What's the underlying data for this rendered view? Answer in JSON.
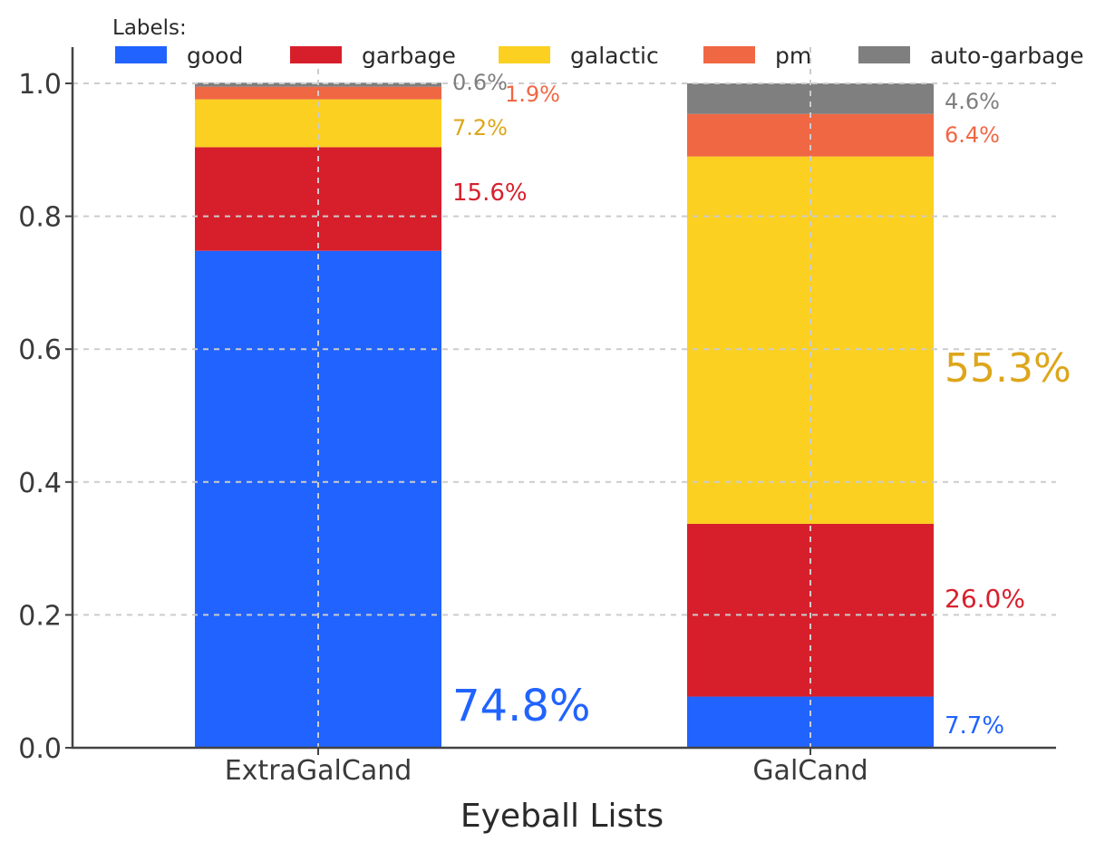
{
  "chart_data": {
    "type": "bar",
    "stacked": true,
    "title": "",
    "xlabel": "Eyeball Lists",
    "ylabel": "",
    "ylim": [
      0,
      1.0
    ],
    "yticks": [
      "0.0",
      "0.2",
      "0.4",
      "0.6",
      "0.8",
      "1.0"
    ],
    "grid": true,
    "legend": {
      "title": "Labels:",
      "placement": "top"
    },
    "categories": [
      "ExtraGalCand",
      "GalCand"
    ],
    "series": [
      {
        "name": "good",
        "color": "#2163ff",
        "label_color": "#2163ff",
        "values": [
          0.748,
          0.077
        ],
        "labels": [
          "74.8%",
          "7.7%"
        ]
      },
      {
        "name": "garbage",
        "color": "#d71f2c",
        "label_color": "#d71f2c",
        "values": [
          0.156,
          0.26
        ],
        "labels": [
          "15.6%",
          "26.0%"
        ]
      },
      {
        "name": "galactic",
        "color": "#fbd021",
        "label_color": "#dda61b",
        "values": [
          0.072,
          0.553
        ],
        "labels": [
          "7.2%",
          "55.3%"
        ]
      },
      {
        "name": "pm",
        "color": "#f06744",
        "label_color": "#f06744",
        "values": [
          0.019,
          0.064
        ],
        "labels": [
          "1.9%",
          "6.4%"
        ]
      },
      {
        "name": "auto-garbage",
        "color": "#7f7f7f",
        "label_color": "#7f7f7f",
        "values": [
          0.006,
          0.046
        ],
        "labels": [
          "0.6%",
          "4.6%"
        ]
      }
    ]
  }
}
